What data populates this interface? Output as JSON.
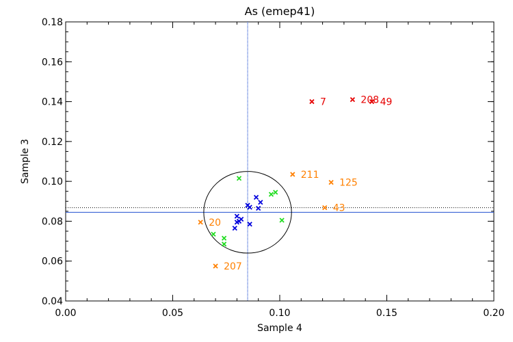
{
  "chart_data": {
    "type": "scatter",
    "title": "As (emep41)",
    "xlabel": "Sample 4",
    "ylabel": "Sample 3",
    "xlim": [
      0.0,
      0.2
    ],
    "ylim": [
      0.04,
      0.18
    ],
    "xticks": [
      "0.00",
      "0.05",
      "0.10",
      "0.15",
      "0.20"
    ],
    "yticks": [
      "0.04",
      "0.06",
      "0.08",
      "0.10",
      "0.12",
      "0.14",
      "0.16",
      "0.18"
    ],
    "grid": false,
    "reference_lines": {
      "vertical_x": 0.085,
      "horizontal_solid_y": 0.0845,
      "horizontal_dotted_y": 0.0868
    },
    "ellipse": {
      "cx": 0.085,
      "cy": 0.0845,
      "rx": 0.0205,
      "ry": 0.0205
    },
    "colors": {
      "red": "#e60000",
      "orange": "#ff8000",
      "green": "#22dd22",
      "blue": "#0000dd",
      "refline": "#1f4fd0"
    },
    "series": [
      {
        "color": "red",
        "points": [
          {
            "x": 0.115,
            "y": 0.14,
            "label": "7"
          },
          {
            "x": 0.134,
            "y": 0.141,
            "label": "208"
          },
          {
            "x": 0.143,
            "y": 0.14,
            "label": "49"
          }
        ]
      },
      {
        "color": "orange",
        "points": [
          {
            "x": 0.106,
            "y": 0.1035,
            "label": "211"
          },
          {
            "x": 0.124,
            "y": 0.0995,
            "label": "125"
          },
          {
            "x": 0.121,
            "y": 0.0868,
            "label": "43"
          },
          {
            "x": 0.063,
            "y": 0.0795,
            "label": "20"
          },
          {
            "x": 0.07,
            "y": 0.0575,
            "label": "207"
          }
        ]
      },
      {
        "color": "green",
        "points": [
          {
            "x": 0.081,
            "y": 0.1015
          },
          {
            "x": 0.096,
            "y": 0.0935
          },
          {
            "x": 0.098,
            "y": 0.0945
          },
          {
            "x": 0.101,
            "y": 0.0805
          },
          {
            "x": 0.069,
            "y": 0.0735
          },
          {
            "x": 0.074,
            "y": 0.0715
          },
          {
            "x": 0.074,
            "y": 0.0685
          }
        ]
      },
      {
        "color": "blue",
        "points": [
          {
            "x": 0.085,
            "y": 0.088
          },
          {
            "x": 0.086,
            "y": 0.087
          },
          {
            "x": 0.089,
            "y": 0.092
          },
          {
            "x": 0.091,
            "y": 0.0895
          },
          {
            "x": 0.09,
            "y": 0.0865
          },
          {
            "x": 0.08,
            "y": 0.0825
          },
          {
            "x": 0.082,
            "y": 0.081
          },
          {
            "x": 0.081,
            "y": 0.08
          },
          {
            "x": 0.08,
            "y": 0.0795
          },
          {
            "x": 0.086,
            "y": 0.0785
          },
          {
            "x": 0.079,
            "y": 0.0765
          }
        ]
      }
    ]
  }
}
